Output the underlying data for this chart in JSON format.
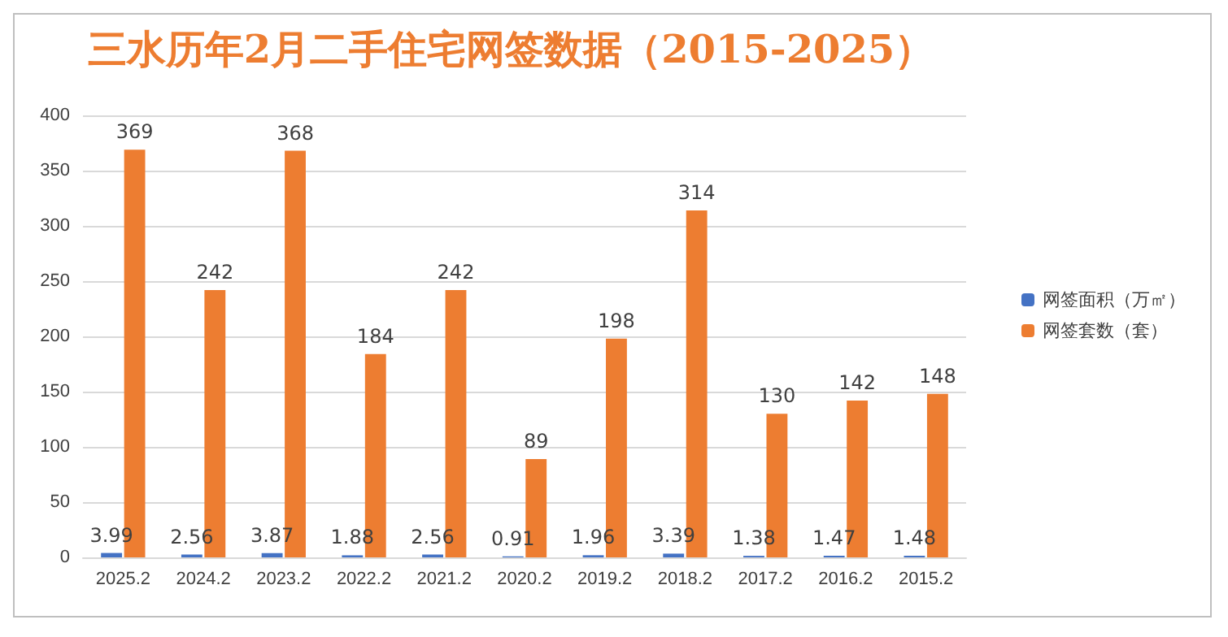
{
  "chart_data": {
    "type": "bar",
    "title": "三水历年2月二手住宅网签数据（2015-2025）",
    "categories": [
      "2025.2",
      "2024.2",
      "2023.2",
      "2022.2",
      "2021.2",
      "2020.2",
      "2019.2",
      "2018.2",
      "2017.2",
      "2016.2",
      "2015.2"
    ],
    "series": [
      {
        "name": "网签面积（万㎡）",
        "color": "#4472c4",
        "values": [
          3.99,
          2.56,
          3.87,
          1.88,
          2.56,
          0.91,
          1.96,
          3.39,
          1.38,
          1.47,
          1.48
        ]
      },
      {
        "name": "网签套数（套）",
        "color": "#ed7d31",
        "values": [
          369,
          242,
          368,
          184,
          242,
          89,
          198,
          314,
          130,
          142,
          148
        ]
      }
    ],
    "ylim": [
      0,
      400
    ],
    "yticks": [
      0,
      50,
      100,
      150,
      200,
      250,
      300,
      350,
      400
    ],
    "grid": "y",
    "legend": "right",
    "data_labels": true
  }
}
